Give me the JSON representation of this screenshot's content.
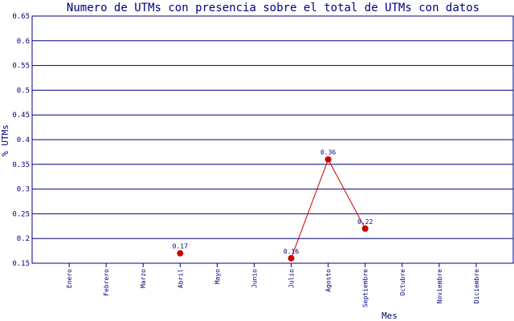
{
  "chart_data": {
    "type": "line",
    "title": "Numero de UTMs con presencia sobre el total de UTMs con datos",
    "xlabel": "Mes",
    "ylabel": "% UTMs",
    "categories": [
      "Enero",
      "Febrero",
      "Marzo",
      "Abril",
      "Mayo",
      "Junio",
      "Julio",
      "Agosto",
      "Septiembre",
      "Octubre",
      "Noviembre",
      "Diciembre"
    ],
    "series": [
      {
        "values": [
          null,
          null,
          null,
          0.17,
          null,
          null,
          0.16,
          0.36,
          0.22,
          null,
          null,
          null
        ],
        "labels": [
          "",
          "",
          "",
          "0.17",
          "",
          "",
          "0.16",
          "0.36",
          "0.22",
          "",
          "",
          ""
        ],
        "color": "#cc0000"
      }
    ],
    "ylim": [
      0.15,
      0.65
    ],
    "yticks": [
      "0.15",
      "0.2",
      "0.25",
      "0.3",
      "0.35",
      "0.4",
      "0.45",
      "0.5",
      "0.55",
      "0.6",
      "0.65"
    ],
    "grid": true,
    "grid_color": "#000080",
    "axis_color": "#000080"
  }
}
